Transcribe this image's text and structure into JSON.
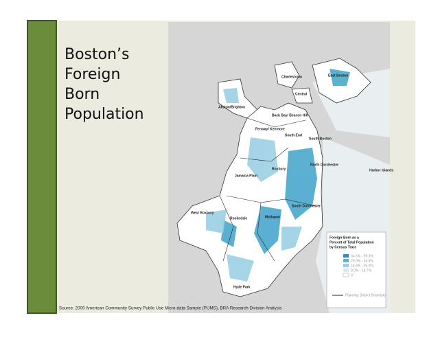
{
  "slide": {
    "title": [
      "Boston’s",
      "Foreign",
      "Born",
      "Population"
    ],
    "source": "Source: 2009 American Community Survey Public Use Micro-data Sample (PUMS), BRA Research Division Analysis"
  },
  "map": {
    "labels": [
      "Charlestown",
      "East Boston",
      "Central",
      "Allston/Brighton",
      "Back Bay/ Beacon Hill",
      "Fenway/ Kenmore",
      "South End",
      "South Boston",
      "North Dorchester",
      "Harbor Islands",
      "Roxbury",
      "Jamaica Plain",
      "South Dorchester",
      "West Roxbury",
      "Roslindale",
      "Mattapan",
      "Hyde Park"
    ],
    "legend": {
      "title": [
        "Foreign-Born as a",
        "Percent of Total Population",
        "by Census Tract"
      ],
      "items": [
        "34.5% - 59.3%",
        "25.0% - 34.4%",
        "16.9% - 25.0%",
        "0.0% - 16.7%",
        "0"
      ],
      "boundary": "Planning District Boundary"
    }
  }
}
